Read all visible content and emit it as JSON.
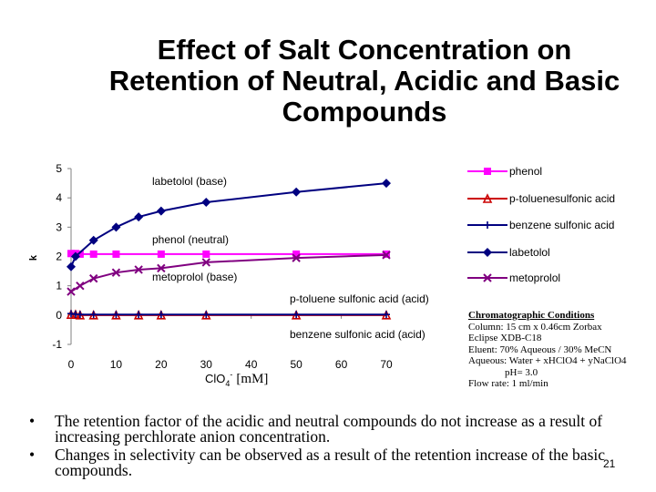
{
  "slide": {
    "title": "Effect of Salt Concentration on Retention of Neutral, Acidic and Basic Compounds",
    "page_number": "21"
  },
  "colors": {
    "phenol": "#ff00ff",
    "ptoluene": "#cc0000",
    "benzene": "#000080",
    "labetolol": "#000080",
    "metoprolol": "#800080"
  },
  "chart_data": {
    "type": "line",
    "title": "Effect of Salt Concentration on Retention of Neutral, Acidic and Basic Compounds",
    "xlabel_main": "ClO",
    "xlabel_sub": "4",
    "xlabel_sup": "-",
    "xlabel_unit": "[mM]",
    "ylabel": "k",
    "xlim": [
      0,
      70
    ],
    "ylim": [
      -1,
      5
    ],
    "x_ticks": [
      0,
      10,
      20,
      30,
      40,
      50,
      60,
      70
    ],
    "x_tick_labels": [
      "0",
      "10",
      "20",
      "30",
      "40",
      "50",
      "60",
      "70"
    ],
    "y_ticks": [
      -1,
      0,
      1,
      2,
      3,
      4,
      5
    ],
    "y_tick_labels": [
      "-1",
      "0",
      "1",
      "2",
      "3",
      "4",
      "5"
    ],
    "grid": false,
    "legend_position": "right",
    "series": [
      {
        "key": "phenol",
        "name": "phenol",
        "marker": "square",
        "x": [
          0,
          1,
          2,
          5,
          10,
          20,
          30,
          50,
          70
        ],
        "y": [
          2.1,
          2.1,
          2.08,
          2.08,
          2.08,
          2.08,
          2.08,
          2.08,
          2.08
        ]
      },
      {
        "key": "ptoluene",
        "name": "p-toluenesulfonic acid",
        "marker": "triangle",
        "x": [
          0,
          1,
          2,
          5,
          10,
          15,
          20,
          30,
          50,
          70
        ],
        "y": [
          0.02,
          0.02,
          0.0,
          0.0,
          0.0,
          0.0,
          0.0,
          0.0,
          0.0,
          0.0
        ]
      },
      {
        "key": "benzene",
        "name": "benzene sulfonic acid",
        "marker": "plus",
        "x": [
          0,
          1,
          2,
          5,
          10,
          15,
          20,
          30,
          50,
          70
        ],
        "y": [
          0.05,
          0.03,
          0.02,
          0.02,
          0.02,
          0.02,
          0.02,
          0.02,
          0.02,
          0.02
        ]
      },
      {
        "key": "labetolol",
        "name": "labetolol",
        "marker": "diamond",
        "x": [
          0,
          1,
          5,
          10,
          15,
          20,
          30,
          50,
          70
        ],
        "y": [
          1.65,
          2.0,
          2.55,
          3.0,
          3.35,
          3.55,
          3.85,
          4.2,
          4.5
        ]
      },
      {
        "key": "metoprolol",
        "name": "metoprolol",
        "marker": "x",
        "x": [
          0,
          2,
          5,
          10,
          15,
          20,
          30,
          50,
          70
        ],
        "y": [
          0.8,
          1.0,
          1.25,
          1.45,
          1.55,
          1.6,
          1.8,
          1.95,
          2.05
        ]
      }
    ],
    "annotations": {
      "labetolol_base": "labetolol (base)",
      "phenol_neutral": "phenol (neutral)",
      "metoprolol_base": "metoprolol (base)",
      "ptoluene_acid": "p-toluene sulfonic acid (acid)",
      "benzene_acid": "benzene sulfonic acid (acid)"
    }
  },
  "conditions": {
    "heading": "Chromatographic Conditions",
    "column": "Column: 15 cm x 0.46cm Zorbax",
    "column_cont": "Eclipse XDB-C18",
    "eluent": "Eluent: 70% Aqueous / 30% MeCN",
    "aqueous": "Aqueous: Water + xHClO4 + yNaClO4",
    "ph": "pH= 3.0",
    "flow": "Flow rate: 1 ml/min"
  },
  "bullets": [
    "The retention factor of the acidic and neutral compounds do not increase as a result of increasing perchlorate anion concentration.",
    "Changes in selectivity can be observed as a result of the retention increase of the basic compounds."
  ],
  "bullet_symbol": "•"
}
